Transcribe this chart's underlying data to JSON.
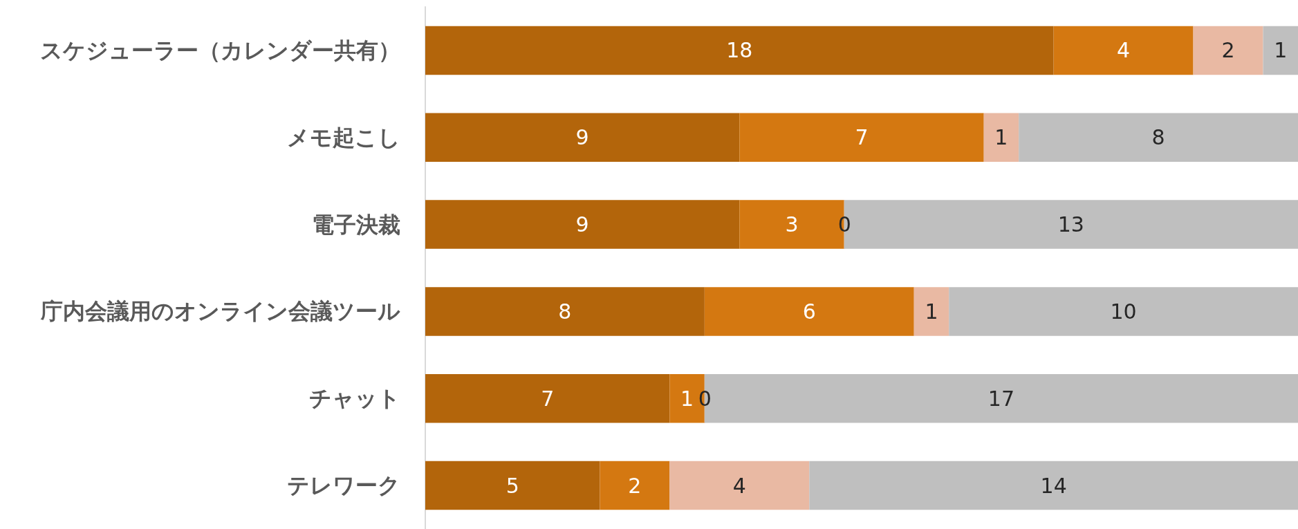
{
  "chart_data": {
    "type": "bar",
    "orientation": "horizontal",
    "stacked": true,
    "data_labels": true,
    "grid": false,
    "tick_labels": "y",
    "categories": [
      "スケジューラー（カレンダー共有）",
      "メモ起こし",
      "電子決裁",
      "庁内会議用のオンライン会議ツール",
      "チャット",
      "テレワーク"
    ],
    "xlim": [
      0,
      25
    ],
    "series": [
      {
        "color": "#b3650b",
        "values": [
          18,
          9,
          9,
          8,
          7,
          5
        ]
      },
      {
        "color": "#d47811",
        "values": [
          4,
          7,
          3,
          6,
          1,
          2
        ]
      },
      {
        "color": "#e9b9a3",
        "values": [
          2,
          1,
          0,
          1,
          0,
          4
        ]
      },
      {
        "color": "#bfbfbf",
        "values": [
          1,
          8,
          13,
          10,
          17,
          14
        ]
      }
    ]
  }
}
